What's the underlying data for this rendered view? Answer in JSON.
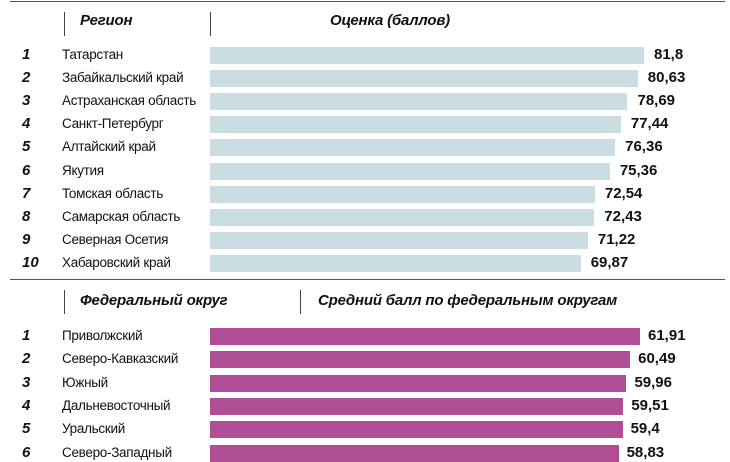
{
  "colors": {
    "section1_bar": "#c9dde3",
    "section2_bar": "#b04e95"
  },
  "chart_data": [
    {
      "type": "bar",
      "orientation": "horizontal",
      "column_headers": [
        "Регион",
        "Оценка (баллов)"
      ],
      "ranks": [
        "1",
        "2",
        "3",
        "4",
        "5",
        "6",
        "7",
        "8",
        "9",
        "10"
      ],
      "categories": [
        "Татарстан",
        "Забайкальский край",
        "Астраханская область",
        "Санкт-Петербург",
        "Алтайский край",
        "Якутия",
        "Томская область",
        "Самарская область",
        "Северная Осетия",
        "Хабаровский край"
      ],
      "values": [
        81.8,
        80.63,
        78.69,
        77.44,
        76.36,
        75.36,
        72.54,
        72.43,
        71.22,
        69.87
      ],
      "value_labels": [
        "81,8",
        "80,63",
        "78,69",
        "77,44",
        "76,36",
        "75,36",
        "72,54",
        "72,43",
        "71,22",
        "69,87"
      ]
    },
    {
      "type": "bar",
      "orientation": "horizontal",
      "column_headers": [
        "Федеральный округ",
        "Средний балл по федеральным округам"
      ],
      "ranks": [
        "1",
        "2",
        "3",
        "4",
        "5",
        "6"
      ],
      "categories": [
        "Приволжский",
        "Северо-Кавказский",
        "Южный",
        "Дальневосточный",
        "Уральский",
        "Северо-Западный"
      ],
      "values": [
        61.91,
        60.49,
        59.96,
        59.51,
        59.4,
        58.83
      ],
      "value_labels": [
        "61,91",
        "60,49",
        "59,96",
        "59,51",
        "59,4",
        "58,83"
      ]
    }
  ]
}
